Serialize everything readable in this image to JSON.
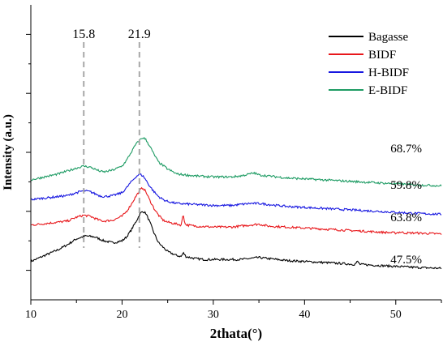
{
  "chart_data": {
    "type": "line",
    "xlabel": "2thata(°)",
    "ylabel": "Intensity (a.u.)",
    "xlim": [
      10,
      55
    ],
    "x_ticks": [
      10,
      20,
      30,
      40,
      50
    ],
    "y_ticks_labeled": false,
    "grid": false,
    "legend_position": "top-right",
    "peak_markers": [
      {
        "x": 15.8,
        "label": "15.8"
      },
      {
        "x": 21.9,
        "label": "21.9"
      }
    ],
    "series": [
      {
        "name": "Bagasse",
        "color": "#000000",
        "crystallinity": "47.5%",
        "x": [
          10,
          11,
          12,
          13,
          14,
          15,
          16,
          17,
          18,
          19,
          20,
          20.5,
          21,
          21.5,
          22,
          22.3,
          22.6,
          23,
          23.5,
          24,
          25,
          26,
          26.5,
          26.7,
          27,
          28,
          29,
          30,
          31,
          32,
          33,
          34,
          35,
          36,
          37,
          38,
          40,
          42,
          44,
          45.5,
          45.8,
          46.1,
          48,
          50,
          52,
          55
        ],
        "y": [
          9,
          13,
          17,
          21,
          26,
          32,
          35,
          34,
          30,
          28,
          30,
          34,
          41,
          49,
          58,
          60,
          58,
          50,
          38,
          28,
          19,
          15,
          14,
          18,
          14,
          12,
          11,
          11,
          11,
          11,
          11,
          12,
          13,
          12,
          11,
          10,
          9,
          8,
          7,
          6,
          9,
          6,
          5,
          4,
          3,
          2
        ]
      },
      {
        "name": "BIDF",
        "color": "#e8171b",
        "crystallinity": "63.8%",
        "x": [
          10,
          11,
          12,
          13,
          14,
          15,
          15.8,
          16.5,
          17,
          17.5,
          18,
          19,
          20,
          20.5,
          21,
          21.5,
          22,
          22.3,
          22.6,
          23,
          23.5,
          24,
          24.5,
          25,
          26,
          26.5,
          26.7,
          26.9,
          27.2,
          28,
          30,
          32,
          33,
          34,
          35,
          36,
          38,
          40,
          42,
          44,
          46,
          48,
          50,
          50.5,
          51,
          52,
          55
        ],
        "y": [
          46,
          47,
          48,
          49,
          50,
          54,
          56,
          55,
          53,
          51,
          50,
          51,
          55,
          60,
          67,
          75,
          82,
          84,
          80,
          72,
          63,
          56,
          51,
          49,
          47,
          46,
          58,
          47,
          46,
          45,
          44,
          44,
          45,
          46,
          47,
          45,
          44,
          43,
          42,
          41,
          40,
          39,
          38,
          39,
          38,
          38,
          37
        ]
      },
      {
        "name": "H-BIDF",
        "color": "#1717e0",
        "crystallinity": "59.8%",
        "x": [
          10,
          11,
          12,
          13,
          14,
          15,
          15.8,
          16.5,
          17,
          17.5,
          18,
          19,
          20,
          20.5,
          21,
          21.5,
          21.9,
          22.3,
          22.6,
          23,
          23.5,
          24,
          24.5,
          25,
          26,
          28,
          30,
          32,
          33,
          34,
          35,
          36,
          38,
          40,
          42,
          44,
          46,
          48,
          50,
          52,
          55
        ],
        "y": [
          72,
          73,
          74,
          75,
          76,
          79,
          81,
          80,
          78,
          76,
          75,
          76,
          79,
          84,
          90,
          95,
          98,
          96,
          92,
          86,
          80,
          75,
          72,
          70,
          68,
          67,
          66,
          66,
          67,
          68,
          68,
          67,
          65,
          64,
          63,
          62,
          61,
          60,
          59,
          58,
          57
        ]
      },
      {
        "name": "E-BIDF",
        "color": "#1d9b63",
        "crystallinity": "68.7%",
        "x": [
          10,
          11,
          12,
          13,
          14,
          15,
          15.8,
          16.5,
          17,
          17.5,
          18,
          19,
          20,
          20.5,
          21,
          21.5,
          22,
          22.3,
          22.6,
          23,
          23.5,
          24,
          25,
          26,
          28,
          30,
          32,
          33,
          34,
          34.5,
          35,
          36,
          38,
          40,
          42,
          44,
          46,
          48,
          50,
          52,
          55
        ],
        "y": [
          92,
          94,
          96,
          98,
          101,
          104,
          106,
          105,
          103,
          101,
          100,
          102,
          106,
          112,
          120,
          128,
          133,
          135,
          133,
          127,
          118,
          110,
          103,
          98,
          96,
          95,
          95,
          96,
          98,
          99,
          97,
          96,
          94,
          93,
          92,
          91,
          90,
          89,
          88,
          87,
          86
        ]
      }
    ]
  }
}
